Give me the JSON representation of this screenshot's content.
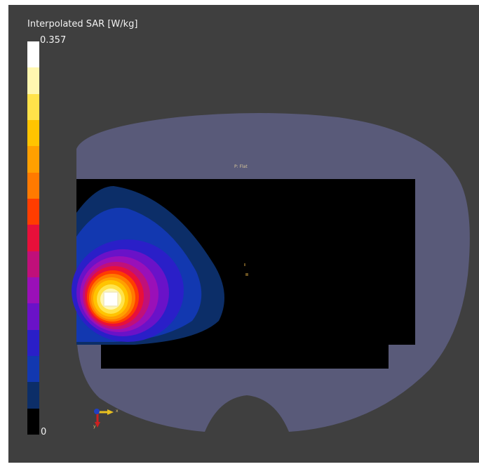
{
  "legend": {
    "title": "Interpolated SAR [W/kg]",
    "max_label": "0.357",
    "min_label": "0",
    "colors": [
      "#ffffff",
      "#fff7b0",
      "#ffe34a",
      "#ffc400",
      "#ffa000",
      "#ff7a00",
      "#ff3d00",
      "#e8103a",
      "#c0107a",
      "#9a10b8",
      "#6a12c8",
      "#2a1fc8",
      "#1238b0",
      "#0c2e68",
      "#000000"
    ]
  },
  "scene": {
    "plane_label": "P: Flat",
    "background_color": "#3f3f3f",
    "phantom_color": "#59597a",
    "measurement_area_color": "#000000"
  },
  "axes": {
    "x_label": "x",
    "y_label": "y"
  }
}
